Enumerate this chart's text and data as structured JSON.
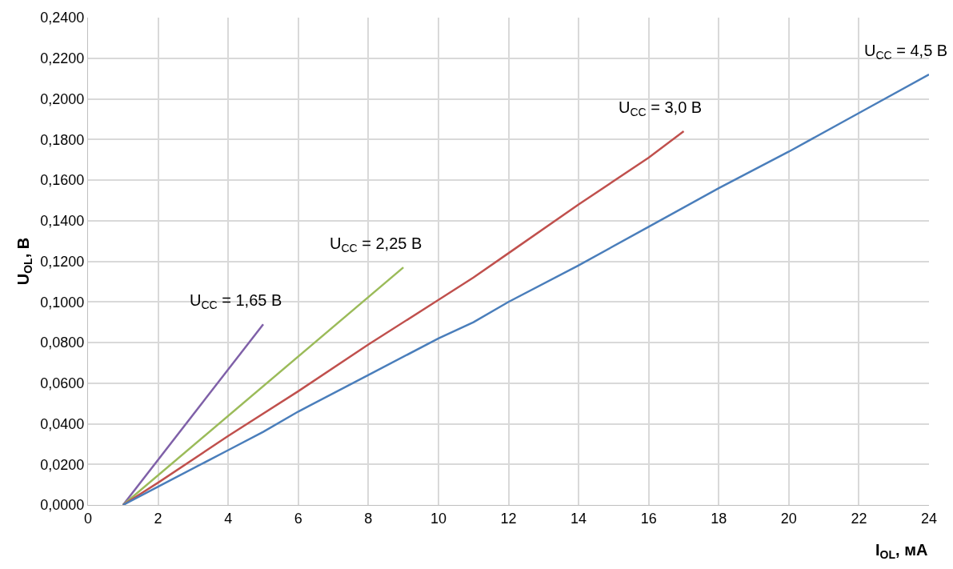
{
  "chart_data": {
    "type": "line",
    "xlabel": "I$_{OL}$, мА",
    "ylabel": "U$_{OL}$, В",
    "series": [
      {
        "name": "U$_{CC}$ = 1,65 В",
        "color": "#7f60a8",
        "x": [
          1,
          5
        ],
        "values": [
          0,
          0.089
        ]
      },
      {
        "name": "U$_{CC}$ = 2,25 В",
        "color": "#9bbb59",
        "x": [
          1,
          9
        ],
        "values": [
          0,
          0.117
        ]
      },
      {
        "name": "U$_{CC}$ = 3,0 В",
        "color": "#c0504d",
        "x": [
          1,
          2,
          4,
          6,
          8,
          10,
          11,
          12,
          14,
          16,
          17
        ],
        "values": [
          0,
          0.011,
          0.034,
          0.056,
          0.079,
          0.101,
          0.112,
          0.124,
          0.148,
          0.171,
          0.184
        ]
      },
      {
        "name": "U$_{CC}$ = 4,5 В",
        "color": "#4a7ebb",
        "x": [
          1,
          2,
          4,
          5,
          6,
          8,
          10,
          11,
          12,
          14,
          16,
          18,
          20,
          22,
          24
        ],
        "values": [
          0,
          0.009,
          0.027,
          0.036,
          0.046,
          0.064,
          0.082,
          0.09,
          0.1,
          0.118,
          0.137,
          0.156,
          0.174,
          0.193,
          0.212
        ]
      }
    ],
    "xlim": [
      0,
      24
    ],
    "xticks": [
      0,
      2,
      4,
      6,
      8,
      10,
      12,
      14,
      16,
      18,
      20,
      22,
      24
    ],
    "ylim": [
      0,
      0.24
    ],
    "yticks": [
      {
        "value": 0,
        "label": "0,0000"
      },
      {
        "value": 0.02,
        "label": "0,0200"
      },
      {
        "value": 0.04,
        "label": "0,0400"
      },
      {
        "value": 0.06,
        "label": "0,0600"
      },
      {
        "value": 0.08,
        "label": "0,0800"
      },
      {
        "value": 0.1,
        "label": "0,1000"
      },
      {
        "value": 0.12,
        "label": "0,1200"
      },
      {
        "value": 0.14,
        "label": "0,1400"
      },
      {
        "value": 0.16,
        "label": "0,1600"
      },
      {
        "value": 0.18,
        "label": "0,1800"
      },
      {
        "value": 0.2,
        "label": "0,2000"
      },
      {
        "value": 0.22,
        "label": "0,2200"
      },
      {
        "value": 0.24,
        "label": "0,2400"
      }
    ],
    "grid": true,
    "legend": false,
    "marker": "none",
    "line_style": "solid"
  }
}
